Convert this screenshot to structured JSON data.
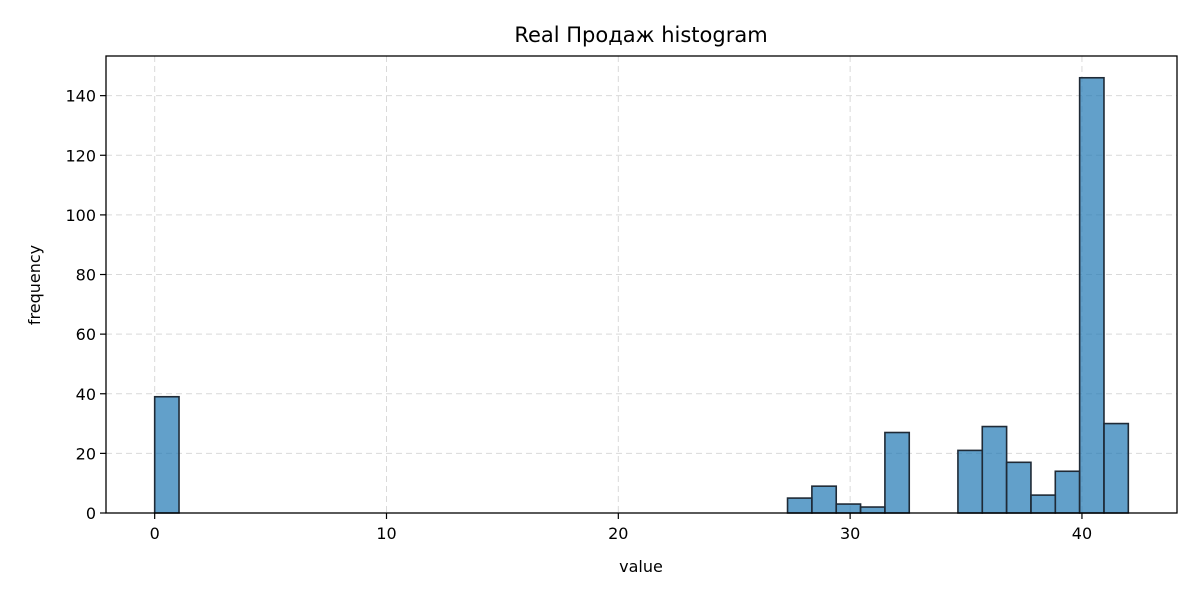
{
  "chart_data": {
    "type": "bar",
    "title": "Real Продаж histogram",
    "xlabel": "value",
    "ylabel": "frequency",
    "xlim": [
      -2.1,
      44.1
    ],
    "ylim": [
      0,
      153.3
    ],
    "xticks": [
      0,
      10,
      20,
      30,
      40
    ],
    "yticks": [
      0,
      20,
      40,
      60,
      80,
      100,
      120,
      140
    ],
    "grid": true,
    "bar_color": "#1f77b4",
    "edge_color": "#1f2a36",
    "bin_width": 1.05,
    "bins": [
      {
        "start": 0.0,
        "count": 39
      },
      {
        "start": 27.3,
        "count": 5
      },
      {
        "start": 28.35,
        "count": 9
      },
      {
        "start": 29.4,
        "count": 3
      },
      {
        "start": 30.45,
        "count": 2
      },
      {
        "start": 31.5,
        "count": 27
      },
      {
        "start": 34.65,
        "count": 21
      },
      {
        "start": 35.7,
        "count": 29
      },
      {
        "start": 36.75,
        "count": 17
      },
      {
        "start": 37.8,
        "count": 6
      },
      {
        "start": 38.85,
        "count": 14
      },
      {
        "start": 39.9,
        "count": 146
      },
      {
        "start": 40.95,
        "count": 30
      }
    ]
  }
}
